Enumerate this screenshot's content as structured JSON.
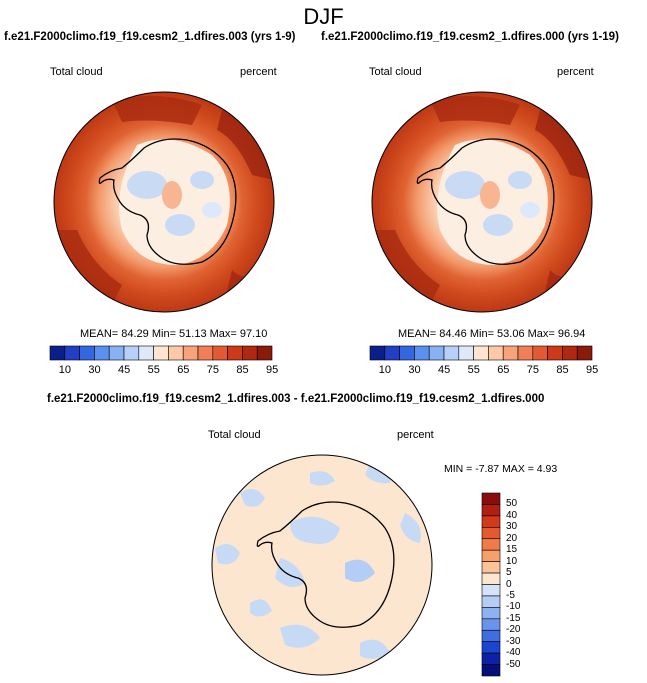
{
  "title": "DJF",
  "panels": [
    {
      "case": "f.e21.F2000climo.f19_f19.cesm2_1.dfires.003 (yrs 1-9)",
      "variable": "Total cloud",
      "units": "percent",
      "stats": "MEAN=  84.29  Min=  51.13  Max=  97.10"
    },
    {
      "case": "f.e21.F2000climo.f19_f19.cesm2_1.dfires.000 (yrs 1-19)",
      "variable": "Total cloud",
      "units": "percent",
      "stats": "MEAN=  84.46  Min=  53.06  Max=  96.94"
    }
  ],
  "colorbar_top": {
    "labels": [
      "10",
      "30",
      "45",
      "55",
      "65",
      "75",
      "85",
      "95"
    ],
    "colors": [
      "#0b1f8c",
      "#1f3fc4",
      "#3466e0",
      "#5b8ff0",
      "#89b2f4",
      "#b6d0f7",
      "#dde9fa",
      "#fde5d0",
      "#fbc8a8",
      "#f7a47d",
      "#f07e56",
      "#e35a32",
      "#cd3a17",
      "#b02810",
      "#8a1a0a"
    ]
  },
  "difference": {
    "title": "f.e21.F2000climo.f19_f19.cesm2_1.dfires.003 - f.e21.F2000climo.f19_f19.cesm2_1.dfires.000",
    "variable": "Total cloud",
    "units": "percent",
    "stats": "MIN =  -7.87 MAX =   4.93",
    "colorbar": {
      "labels": [
        "50",
        "40",
        "30",
        "20",
        "15",
        "10",
        "5",
        "0",
        "-5",
        "-10",
        "-15",
        "-20",
        "-30",
        "-40",
        "-50"
      ],
      "colors": [
        "#8a0d0d",
        "#b21f12",
        "#d0391a",
        "#e45a30",
        "#f07a48",
        "#f7a06c",
        "#fbc39a",
        "#fde6cf",
        "#d4e3f7",
        "#b4cdf4",
        "#8eb2ef",
        "#6a94ea",
        "#3f6ee2",
        "#1b45cf",
        "#0b22a8",
        "#050f78"
      ]
    }
  },
  "colors": {
    "ocean_dark": "#b22f12",
    "ocean_mid": "#d34a1e",
    "ice_ring": "#f08a5e",
    "ice_light": "#fcd8c0",
    "ice_blue": "#c9daf5",
    "diff_bg": "#fde6cf",
    "diff_blue": "#c7daf5"
  }
}
